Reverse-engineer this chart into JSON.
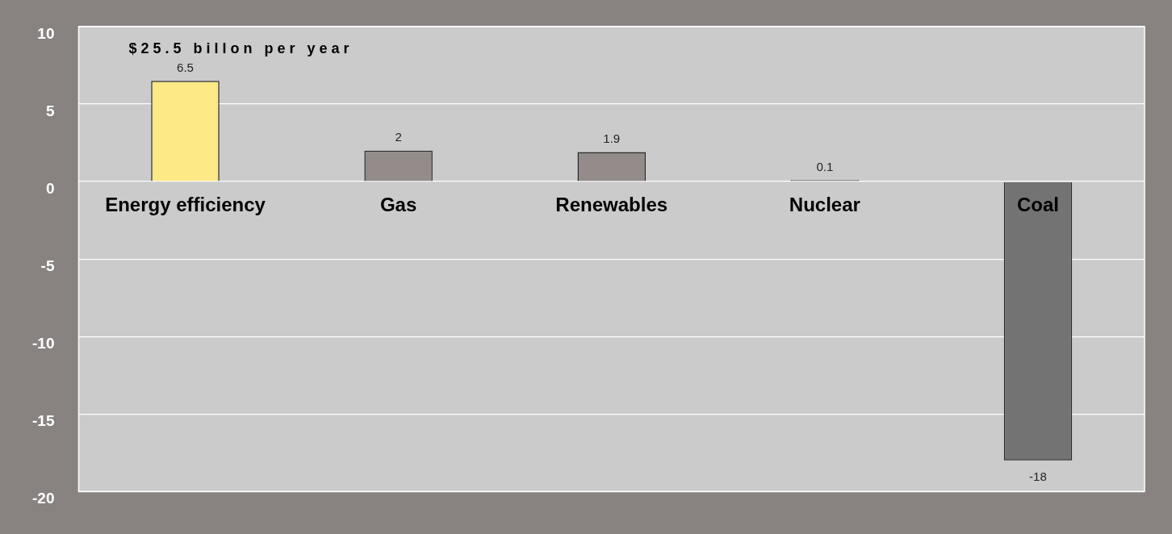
{
  "chart_data": {
    "type": "bar",
    "title": "$25.5 billon per year",
    "categories": [
      "Energy efficiency",
      "Gas",
      "Renewables",
      "Nuclear",
      "Coal"
    ],
    "values": [
      6.5,
      2,
      1.9,
      0.1,
      -18
    ],
    "colors": [
      "#fde985",
      "#938c8a",
      "#938c8a",
      "#938c8a",
      "#737373"
    ],
    "ylim": [
      -20,
      10
    ],
    "yticks": [
      -20,
      -15,
      -10,
      -5,
      0,
      5,
      10
    ],
    "grid": "y",
    "data_labels": true
  }
}
